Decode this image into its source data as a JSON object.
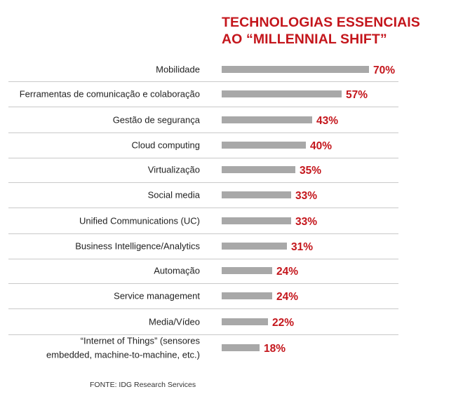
{
  "chart_data": {
    "type": "bar",
    "orientation": "horizontal",
    "title": [
      "TECHNOLOGIAS ESSENCIAIS",
      "AO “MILLENNIAL SHIFT”"
    ],
    "categories": [
      [
        "Mobilidade"
      ],
      [
        "Ferramentas de comunicação e colaboração"
      ],
      [
        "Gestão de segurança"
      ],
      [
        "Cloud computing"
      ],
      [
        "Virtualização"
      ],
      [
        "Social media"
      ],
      [
        "Unified Communications (UC)"
      ],
      [
        "Business Intelligence/Analytics"
      ],
      [
        "Automação"
      ],
      [
        "Service management"
      ],
      [
        "Media/Vídeo"
      ],
      [
        "“Internet of Things” (sensores",
        "embedded, machine-to-machine, etc.)"
      ]
    ],
    "values": [
      70,
      57,
      43,
      40,
      35,
      33,
      33,
      31,
      24,
      24,
      22,
      18
    ],
    "value_labels": [
      "70%",
      "57%",
      "43%",
      "40%",
      "35%",
      "33%",
      "33%",
      "31%",
      "24%",
      "24%",
      "22%",
      "18%"
    ],
    "xlim": [
      0,
      100
    ],
    "grid": false,
    "legend": "none",
    "colors": {
      "bar": "#a8a8a8",
      "value_label": "#c4161c",
      "title": "#c4161c",
      "separator": "#c9c9c9"
    }
  },
  "source": "FONTE: IDG Research Services"
}
